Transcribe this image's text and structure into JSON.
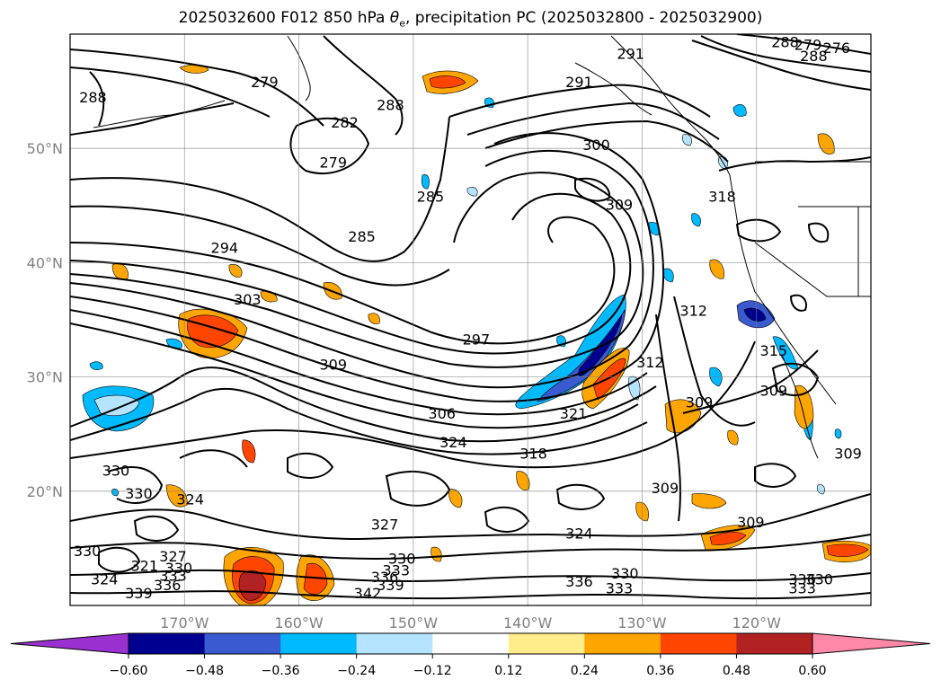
{
  "title": {
    "prefix": "2025032600 F012 850 hPa ",
    "symbol": "θ",
    "subscript": "e",
    "suffix": ", precipitation PC (2025032800 - 2025032900)"
  },
  "map": {
    "lon_range": [
      -180,
      -110
    ],
    "lat_range": [
      10,
      60
    ],
    "lat_ticks": [
      {
        "value": 50,
        "label": "50°N"
      },
      {
        "value": 40,
        "label": "40°N"
      },
      {
        "value": 30,
        "label": "30°N"
      },
      {
        "value": 20,
        "label": "20°N"
      }
    ],
    "lon_ticks": [
      {
        "value": -170,
        "label": "170°W"
      },
      {
        "value": -160,
        "label": "160°W"
      },
      {
        "value": -150,
        "label": "150°W"
      },
      {
        "value": -140,
        "label": "140°W"
      },
      {
        "value": -130,
        "label": "130°W"
      },
      {
        "value": -120,
        "label": "120°W"
      }
    ],
    "grid": true,
    "contour_labels": [
      {
        "text": "288",
        "lon": -178,
        "lat": 54.2
      },
      {
        "text": "279",
        "lon": -163,
        "lat": 55.5
      },
      {
        "text": "282",
        "lon": -156,
        "lat": 52
      },
      {
        "text": "288",
        "lon": -152,
        "lat": 53.5
      },
      {
        "text": "279",
        "lon": -157,
        "lat": 48.5
      },
      {
        "text": "285",
        "lon": -148.5,
        "lat": 45.5
      },
      {
        "text": "291",
        "lon": -135.5,
        "lat": 55.5
      },
      {
        "text": "291",
        "lon": -131,
        "lat": 58
      },
      {
        "text": "300",
        "lon": -134,
        "lat": 50
      },
      {
        "text": "309",
        "lon": -132,
        "lat": 44.8
      },
      {
        "text": "285",
        "lon": -154.5,
        "lat": 42
      },
      {
        "text": "294",
        "lon": -166.5,
        "lat": 41
      },
      {
        "text": "303",
        "lon": -164.5,
        "lat": 36.5
      },
      {
        "text": "297",
        "lon": -144.5,
        "lat": 33
      },
      {
        "text": "309",
        "lon": -157,
        "lat": 30.8
      },
      {
        "text": "306",
        "lon": -147.5,
        "lat": 26.5
      },
      {
        "text": "324",
        "lon": -146.5,
        "lat": 24
      },
      {
        "text": "321",
        "lon": -136,
        "lat": 26.5
      },
      {
        "text": "318",
        "lon": -123,
        "lat": 45.5
      },
      {
        "text": "318",
        "lon": -139.5,
        "lat": 23
      },
      {
        "text": "312",
        "lon": -129.3,
        "lat": 31
      },
      {
        "text": "312",
        "lon": -125.5,
        "lat": 35.5
      },
      {
        "text": "309",
        "lon": -125,
        "lat": 27.5
      },
      {
        "text": "309",
        "lon": -118.5,
        "lat": 28.5
      },
      {
        "text": "315",
        "lon": -118.5,
        "lat": 32
      },
      {
        "text": "309",
        "lon": -112,
        "lat": 23
      },
      {
        "text": "309",
        "lon": -128,
        "lat": 20
      },
      {
        "text": "309",
        "lon": -120.5,
        "lat": 17
      },
      {
        "text": "330",
        "lon": -176,
        "lat": 21.5
      },
      {
        "text": "330",
        "lon": -174,
        "lat": 19.5
      },
      {
        "text": "324",
        "lon": -169.5,
        "lat": 19
      },
      {
        "text": "330",
        "lon": -178.5,
        "lat": 14.5
      },
      {
        "text": "324",
        "lon": -177,
        "lat": 12
      },
      {
        "text": "321",
        "lon": -173.5,
        "lat": 13.2
      },
      {
        "text": "327",
        "lon": -171,
        "lat": 14
      },
      {
        "text": "330",
        "lon": -170.5,
        "lat": 13
      },
      {
        "text": "333",
        "lon": -171,
        "lat": 12.3
      },
      {
        "text": "336",
        "lon": -171.5,
        "lat": 11.5
      },
      {
        "text": "339",
        "lon": -174,
        "lat": 10.8
      },
      {
        "text": "327",
        "lon": -152.5,
        "lat": 16.8
      },
      {
        "text": "330",
        "lon": -151,
        "lat": 13.8
      },
      {
        "text": "333",
        "lon": -151.5,
        "lat": 12.8
      },
      {
        "text": "336",
        "lon": -152.5,
        "lat": 12.2
      },
      {
        "text": "339",
        "lon": -152,
        "lat": 11.5
      },
      {
        "text": "342",
        "lon": -154,
        "lat": 10.8
      },
      {
        "text": "324",
        "lon": -135.5,
        "lat": 16
      },
      {
        "text": "336",
        "lon": -135.5,
        "lat": 11.8
      },
      {
        "text": "330",
        "lon": -131.5,
        "lat": 12.5
      },
      {
        "text": "333",
        "lon": -132,
        "lat": 11.2
      },
      {
        "text": "336",
        "lon": -116,
        "lat": 12
      },
      {
        "text": "330",
        "lon": -114.5,
        "lat": 12
      },
      {
        "text": "333",
        "lon": -116,
        "lat": 11.2
      },
      {
        "text": "288",
        "lon": -117.5,
        "lat": 59
      },
      {
        "text": "279",
        "lon": -115.5,
        "lat": 58.8
      },
      {
        "text": "276",
        "lon": -113,
        "lat": 58.5
      },
      {
        "text": "288",
        "lon": -115,
        "lat": 57.8
      }
    ]
  },
  "colorbar": {
    "ticks": [
      "−0.60",
      "−0.48",
      "−0.36",
      "−0.24",
      "−0.12",
      "0.12",
      "0.24",
      "0.36",
      "0.48",
      "0.60"
    ],
    "under_color": "#9b30d0",
    "colors": [
      "#000090",
      "#3a5ad0",
      "#00baff",
      "#b4e4ff",
      "#ffffff",
      "#ffec8a",
      "#ffa500",
      "#ff4500",
      "#b22222"
    ],
    "over_color": "#ff87a7"
  }
}
